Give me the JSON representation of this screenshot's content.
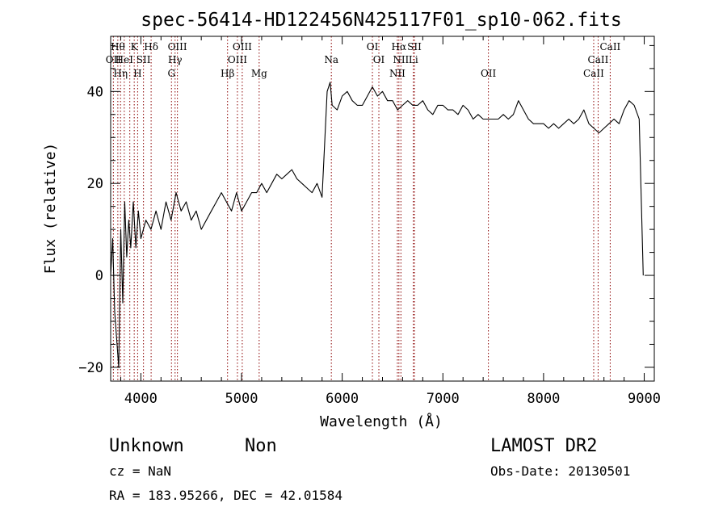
{
  "chart_data": {
    "type": "line",
    "title": "spec-56414-HD122456N425117F01_sp10-062.fits",
    "xlabel": "Wavelength (Å)",
    "ylabel": "Flux (relative)",
    "xlim": [
      3700,
      9100
    ],
    "ylim": [
      -23,
      52
    ],
    "xticks": [
      4000,
      5000,
      6000,
      7000,
      8000,
      9000
    ],
    "yticks": [
      -20,
      0,
      20,
      40
    ],
    "grid": false,
    "line_color": "#000000",
    "marker_color": "#8b0000",
    "series": [
      {
        "x": [
          3700,
          3720,
          3740,
          3760,
          3780,
          3800,
          3820,
          3840,
          3860,
          3880,
          3900,
          3925,
          3950,
          3975,
          4000,
          4050,
          4100,
          4150,
          4200,
          4250,
          4300,
          4350,
          4400,
          4450,
          4500,
          4550,
          4600,
          4650,
          4700,
          4750,
          4800,
          4850,
          4900,
          4950,
          5000,
          5050,
          5100,
          5150,
          5200,
          5250,
          5300,
          5350,
          5400,
          5450,
          5500,
          5550,
          5600,
          5650,
          5700,
          5750,
          5800,
          5850,
          5880,
          5900,
          5950,
          6000,
          6050,
          6100,
          6150,
          6200,
          6250,
          6300,
          6350,
          6400,
          6450,
          6500,
          6550,
          6600,
          6650,
          6700,
          6750,
          6800,
          6850,
          6900,
          6950,
          7000,
          7050,
          7100,
          7150,
          7200,
          7250,
          7300,
          7350,
          7400,
          7450,
          7500,
          7550,
          7600,
          7650,
          7700,
          7750,
          7800,
          7850,
          7900,
          7950,
          8000,
          8050,
          8100,
          8150,
          8200,
          8250,
          8300,
          8350,
          8400,
          8450,
          8500,
          8550,
          8600,
          8650,
          8700,
          8750,
          8800,
          8850,
          8900,
          8950,
          8990
        ],
        "y": [
          0,
          8,
          -8,
          -14,
          -20,
          10,
          -6,
          16,
          4,
          12,
          6,
          16,
          6,
          14,
          8,
          12,
          10,
          14,
          10,
          16,
          12,
          18,
          14,
          16,
          12,
          14,
          10,
          12,
          14,
          16,
          18,
          16,
          14,
          18,
          14,
          16,
          18,
          18,
          20,
          18,
          20,
          22,
          21,
          22,
          23,
          21,
          20,
          19,
          18,
          20,
          17,
          40,
          42,
          37,
          36,
          39,
          40,
          38,
          37,
          37,
          39,
          41,
          39,
          40,
          38,
          38,
          36,
          37,
          38,
          37,
          37,
          38,
          36,
          35,
          37,
          37,
          36,
          36,
          35,
          37,
          36,
          34,
          35,
          34,
          34,
          34,
          34,
          35,
          34,
          35,
          38,
          36,
          34,
          33,
          33,
          33,
          32,
          33,
          32,
          33,
          34,
          33,
          34,
          36,
          33,
          32,
          31,
          32,
          33,
          34,
          33,
          36,
          38,
          37,
          34,
          0
        ]
      }
    ],
    "lines": [
      {
        "wl": 3727,
        "label": "OII",
        "row": 2
      },
      {
        "wl": 3771,
        "label": "Hθ",
        "row": 1
      },
      {
        "wl": 3798,
        "label": "Hη",
        "row": 3
      },
      {
        "wl": 3835,
        "label": "HeI",
        "row": 2
      },
      {
        "wl": 3890,
        "label": "",
        "row": 0
      },
      {
        "wl": 3934,
        "label": "K",
        "row": 1
      },
      {
        "wl": 3968,
        "label": "H",
        "row": 3
      },
      {
        "wl": 4026,
        "label": "SII",
        "row": 2
      },
      {
        "wl": 4102,
        "label": "Hδ",
        "row": 1
      },
      {
        "wl": 4304,
        "label": "G",
        "row": 3
      },
      {
        "wl": 4340,
        "label": "Hγ",
        "row": 2
      },
      {
        "wl": 4363,
        "label": "OIII",
        "row": 1
      },
      {
        "wl": 4861,
        "label": "Hβ",
        "row": 3
      },
      {
        "wl": 4959,
        "label": "OIII",
        "row": 2
      },
      {
        "wl": 5007,
        "label": "OIII",
        "row": 1
      },
      {
        "wl": 5175,
        "label": "Mg",
        "row": 3
      },
      {
        "wl": 5892,
        "label": "Na",
        "row": 2
      },
      {
        "wl": 6300,
        "label": "OI",
        "row": 1
      },
      {
        "wl": 6364,
        "label": "OI",
        "row": 2
      },
      {
        "wl": 6548,
        "label": "NII",
        "row": 3
      },
      {
        "wl": 6563,
        "label": "Hα",
        "row": 1
      },
      {
        "wl": 6583,
        "label": "NII",
        "row": 2
      },
      {
        "wl": 6707,
        "label": "Li",
        "row": 2
      },
      {
        "wl": 6717,
        "label": "SII",
        "row": 1
      },
      {
        "wl": 7452,
        "label": "OII",
        "row": 3
      },
      {
        "wl": 8498,
        "label": "CaII",
        "row": 3
      },
      {
        "wl": 8542,
        "label": "CaII",
        "row": 2
      },
      {
        "wl": 8662,
        "label": "CaII",
        "row": 1
      }
    ]
  },
  "info": {
    "object_class": "Unknown",
    "subclass": "Non",
    "survey": "LAMOST DR2",
    "redshift": "cz = NaN",
    "obs_date": "Obs-Date: 20130501",
    "coords": "RA = 183.95266, DEC =  42.01584"
  }
}
